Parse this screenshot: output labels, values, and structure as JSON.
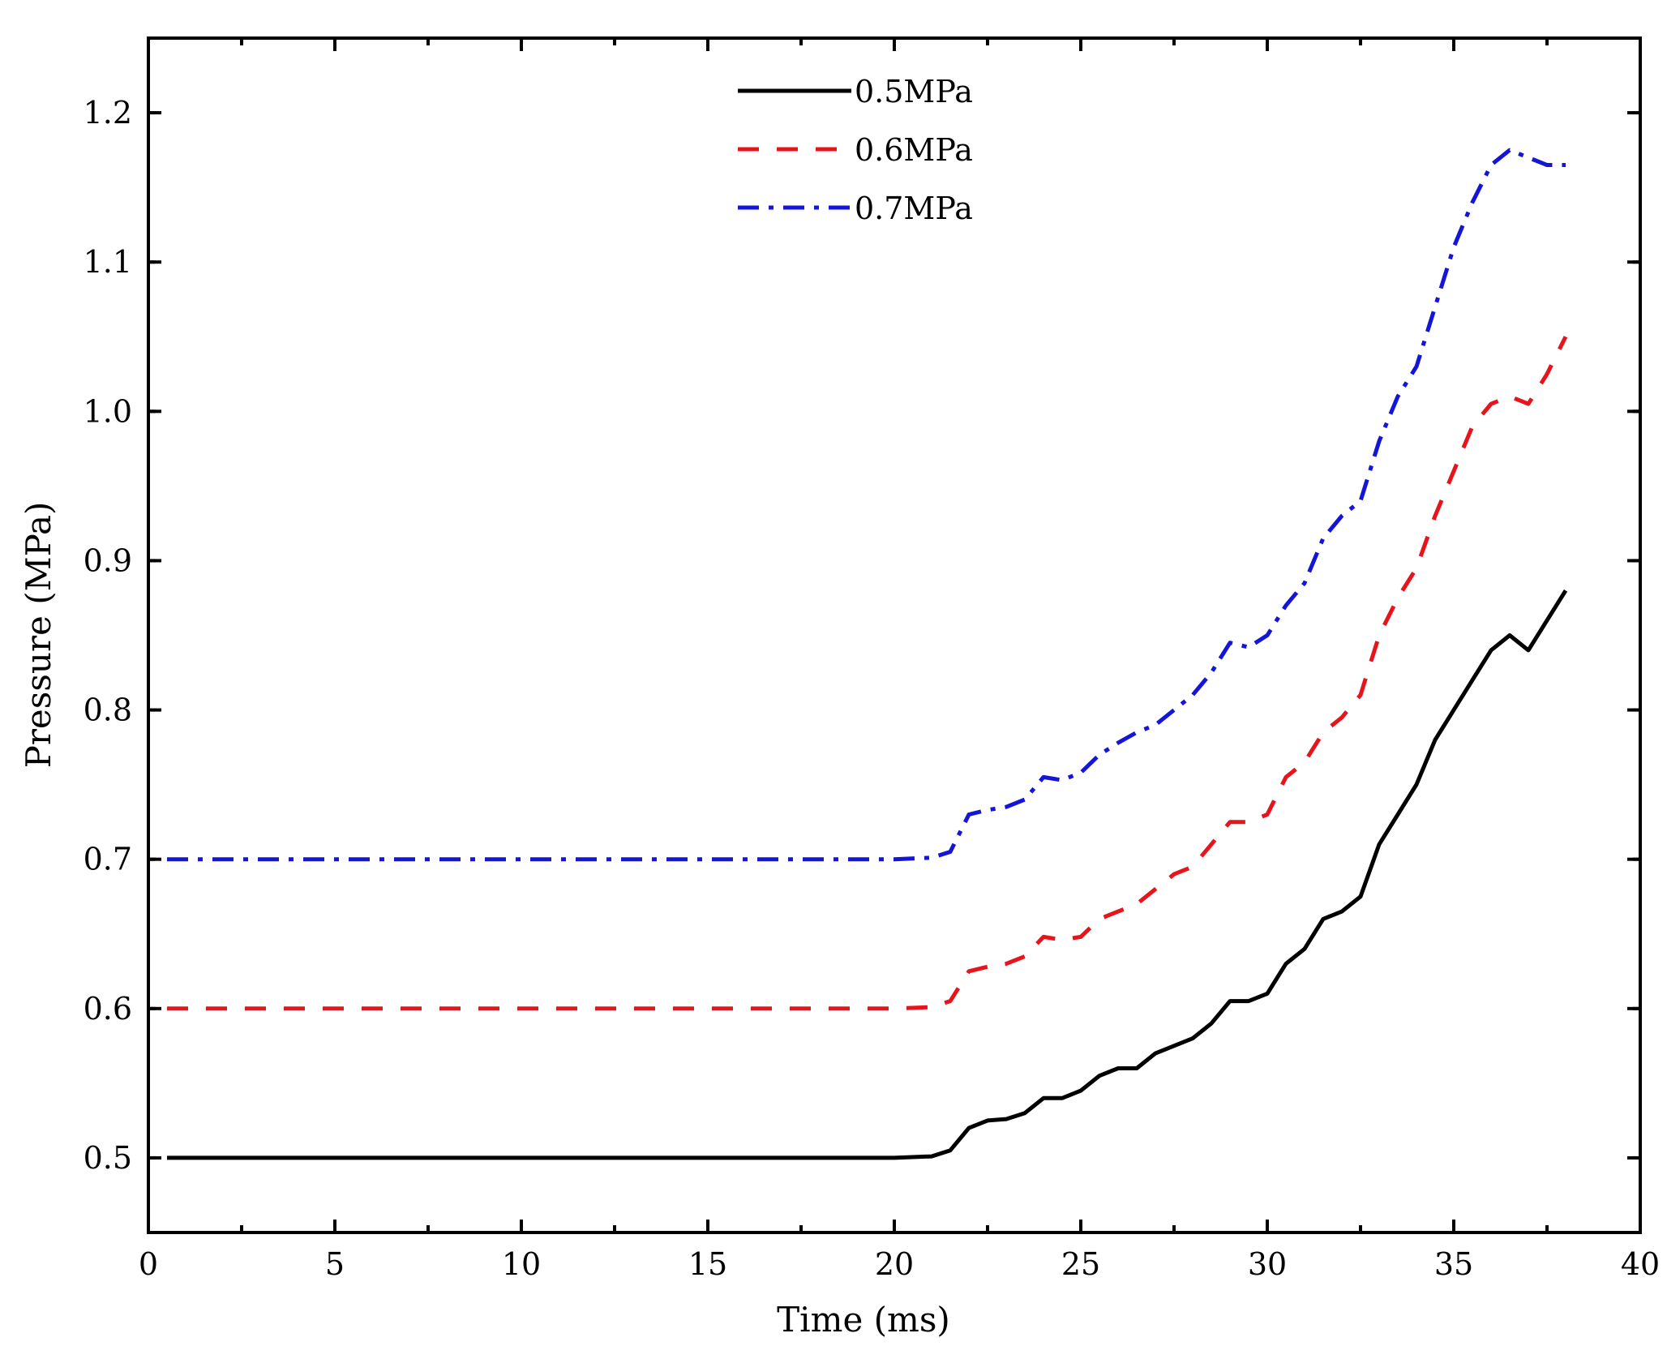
{
  "chart_data": {
    "type": "line",
    "title": "",
    "xlabel": "Time (ms)",
    "ylabel": "Pressure (MPa)",
    "xlim": [
      0,
      40
    ],
    "ylim": [
      0.45,
      1.25
    ],
    "xticks": [
      0,
      5,
      10,
      15,
      20,
      25,
      30,
      35,
      40
    ],
    "xtick_labels": [
      "0",
      "5",
      "10",
      "15",
      "20",
      "25",
      "30",
      "35",
      "40"
    ],
    "yticks": [
      0.5,
      0.6,
      0.7,
      0.8,
      0.9,
      1.0,
      1.1,
      1.2
    ],
    "ytick_labels": [
      "0.5",
      "0.6",
      "0.7",
      "0.8",
      "0.9",
      "1.0",
      "1.1",
      "1.2"
    ],
    "xminor_step": 2.5,
    "yminor_step": 0.05,
    "grid": false,
    "legend_position": "top-center",
    "series": [
      {
        "name": "0.5MPa",
        "color": "#000000",
        "style": "solid",
        "x": [
          0.5,
          5,
          10,
          15,
          20,
          21,
          21.5,
          22,
          22.5,
          23,
          23.5,
          24,
          24.5,
          25,
          25.5,
          26,
          26.5,
          27,
          27.5,
          28,
          28.5,
          29,
          29.5,
          30,
          30.5,
          31,
          31.5,
          32,
          32.5,
          33,
          33.5,
          34,
          34.5,
          35,
          35.5,
          36,
          36.5,
          37,
          37.5,
          38
        ],
        "values": [
          0.5,
          0.5,
          0.5,
          0.5,
          0.5,
          0.501,
          0.505,
          0.52,
          0.525,
          0.526,
          0.53,
          0.54,
          0.54,
          0.545,
          0.555,
          0.56,
          0.56,
          0.57,
          0.575,
          0.58,
          0.59,
          0.605,
          0.605,
          0.61,
          0.63,
          0.64,
          0.66,
          0.665,
          0.675,
          0.71,
          0.73,
          0.75,
          0.78,
          0.8,
          0.82,
          0.84,
          0.85,
          0.84,
          0.86,
          0.88
        ]
      },
      {
        "name": "0.6MPa",
        "color": "#e8141c",
        "style": "dashed",
        "x": [
          0.5,
          5,
          10,
          15,
          20,
          21,
          21.5,
          22,
          22.5,
          23,
          23.5,
          24,
          24.5,
          25,
          25.5,
          26,
          26.5,
          27,
          27.5,
          28,
          28.5,
          29,
          29.5,
          30,
          30.5,
          31,
          31.5,
          32,
          32.5,
          33,
          33.5,
          34,
          34.5,
          35,
          35.5,
          36,
          36.5,
          37,
          37.5,
          38
        ],
        "values": [
          0.6,
          0.6,
          0.6,
          0.6,
          0.6,
          0.601,
          0.605,
          0.625,
          0.628,
          0.63,
          0.635,
          0.648,
          0.646,
          0.648,
          0.66,
          0.665,
          0.67,
          0.68,
          0.69,
          0.695,
          0.71,
          0.725,
          0.725,
          0.73,
          0.755,
          0.765,
          0.785,
          0.795,
          0.81,
          0.85,
          0.875,
          0.895,
          0.93,
          0.96,
          0.99,
          1.005,
          1.01,
          1.005,
          1.025,
          1.05
        ]
      },
      {
        "name": "0.7MPa",
        "color": "#1515d8",
        "style": "dashdot",
        "x": [
          0.5,
          5,
          10,
          15,
          20,
          21,
          21.5,
          22,
          22.5,
          23,
          23.5,
          24,
          24.5,
          25,
          25.5,
          26,
          26.5,
          27,
          27.5,
          28,
          28.5,
          29,
          29.5,
          30,
          30.5,
          31,
          31.5,
          32,
          32.5,
          33,
          33.5,
          34,
          34.5,
          35,
          35.5,
          36,
          36.5,
          37,
          37.5,
          38
        ],
        "values": [
          0.7,
          0.7,
          0.7,
          0.7,
          0.7,
          0.701,
          0.705,
          0.73,
          0.733,
          0.735,
          0.74,
          0.755,
          0.753,
          0.758,
          0.77,
          0.778,
          0.785,
          0.79,
          0.8,
          0.81,
          0.825,
          0.845,
          0.842,
          0.85,
          0.87,
          0.885,
          0.915,
          0.93,
          0.94,
          0.98,
          1.01,
          1.03,
          1.07,
          1.11,
          1.14,
          1.165,
          1.175,
          1.17,
          1.165,
          1.165
        ]
      }
    ]
  }
}
